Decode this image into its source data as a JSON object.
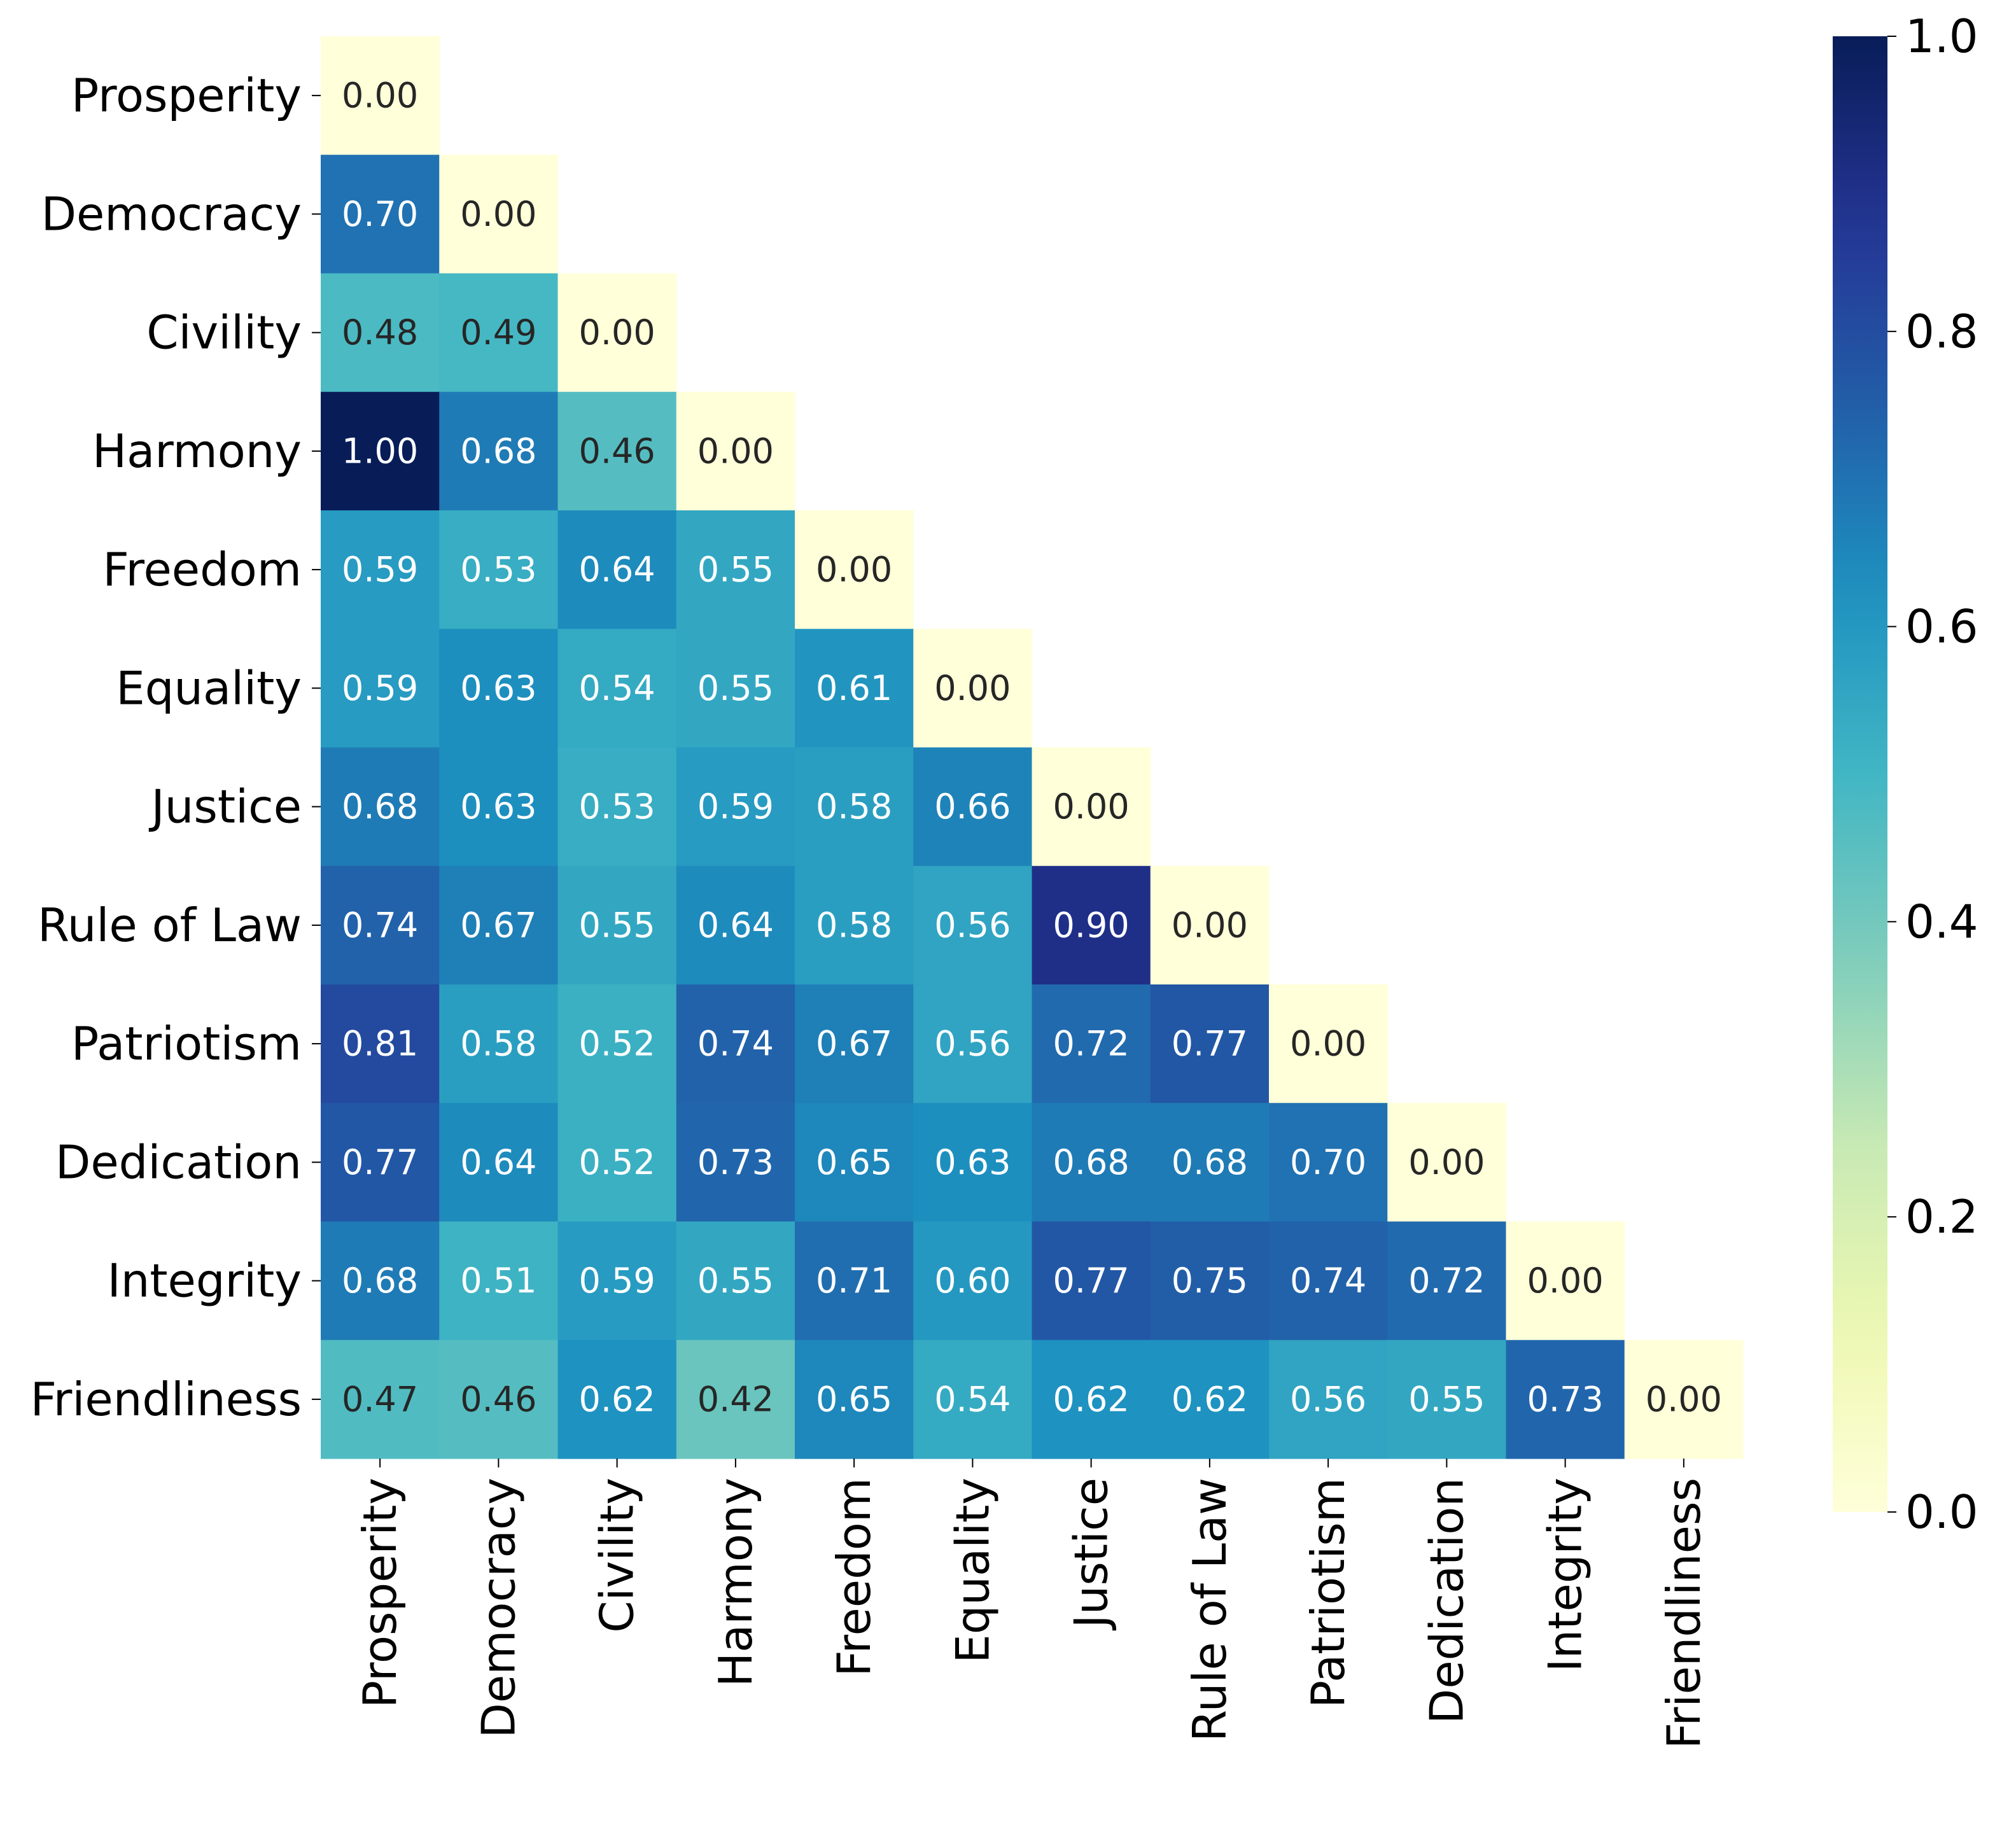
{
  "chart_data": {
    "type": "heatmap",
    "title": "",
    "xlabel": "",
    "ylabel": "",
    "categories": [
      "Prosperity",
      "Democracy",
      "Civility",
      "Harmony",
      "Freedom",
      "Equality",
      "Justice",
      "Rule of Law",
      "Patriotism",
      "Dedication",
      "Integrity",
      "Friendliness"
    ],
    "matrix": [
      [
        "0.00"
      ],
      [
        "0.70",
        "0.00"
      ],
      [
        "0.48",
        "0.49",
        "0.00"
      ],
      [
        "1.00",
        "0.68",
        "0.46",
        "0.00"
      ],
      [
        "0.59",
        "0.53",
        "0.64",
        "0.55",
        "0.00"
      ],
      [
        "0.59",
        "0.63",
        "0.54",
        "0.55",
        "0.61",
        "0.00"
      ],
      [
        "0.68",
        "0.63",
        "0.53",
        "0.59",
        "0.58",
        "0.66",
        "0.00"
      ],
      [
        "0.74",
        "0.67",
        "0.55",
        "0.64",
        "0.58",
        "0.56",
        "0.90",
        "0.00"
      ],
      [
        "0.81",
        "0.58",
        "0.52",
        "0.74",
        "0.67",
        "0.56",
        "0.72",
        "0.77",
        "0.00"
      ],
      [
        "0.77",
        "0.64",
        "0.52",
        "0.73",
        "0.65",
        "0.63",
        "0.68",
        "0.68",
        "0.70",
        "0.00"
      ],
      [
        "0.68",
        "0.51",
        "0.59",
        "0.55",
        "0.71",
        "0.60",
        "0.77",
        "0.75",
        "0.74",
        "0.72",
        "0.00"
      ],
      [
        "0.47",
        "0.46",
        "0.62",
        "0.42",
        "0.65",
        "0.54",
        "0.62",
        "0.62",
        "0.56",
        "0.55",
        "0.73",
        "0.00"
      ]
    ],
    "colorbar": {
      "min": 0.0,
      "max": 1.0,
      "ticks": [
        "0.0",
        "0.2",
        "0.4",
        "0.6",
        "0.8",
        "1.0"
      ],
      "colormap": "YlGnBu"
    },
    "mask": "upper-triangle",
    "grid": false,
    "legend": "colorbar-right"
  }
}
